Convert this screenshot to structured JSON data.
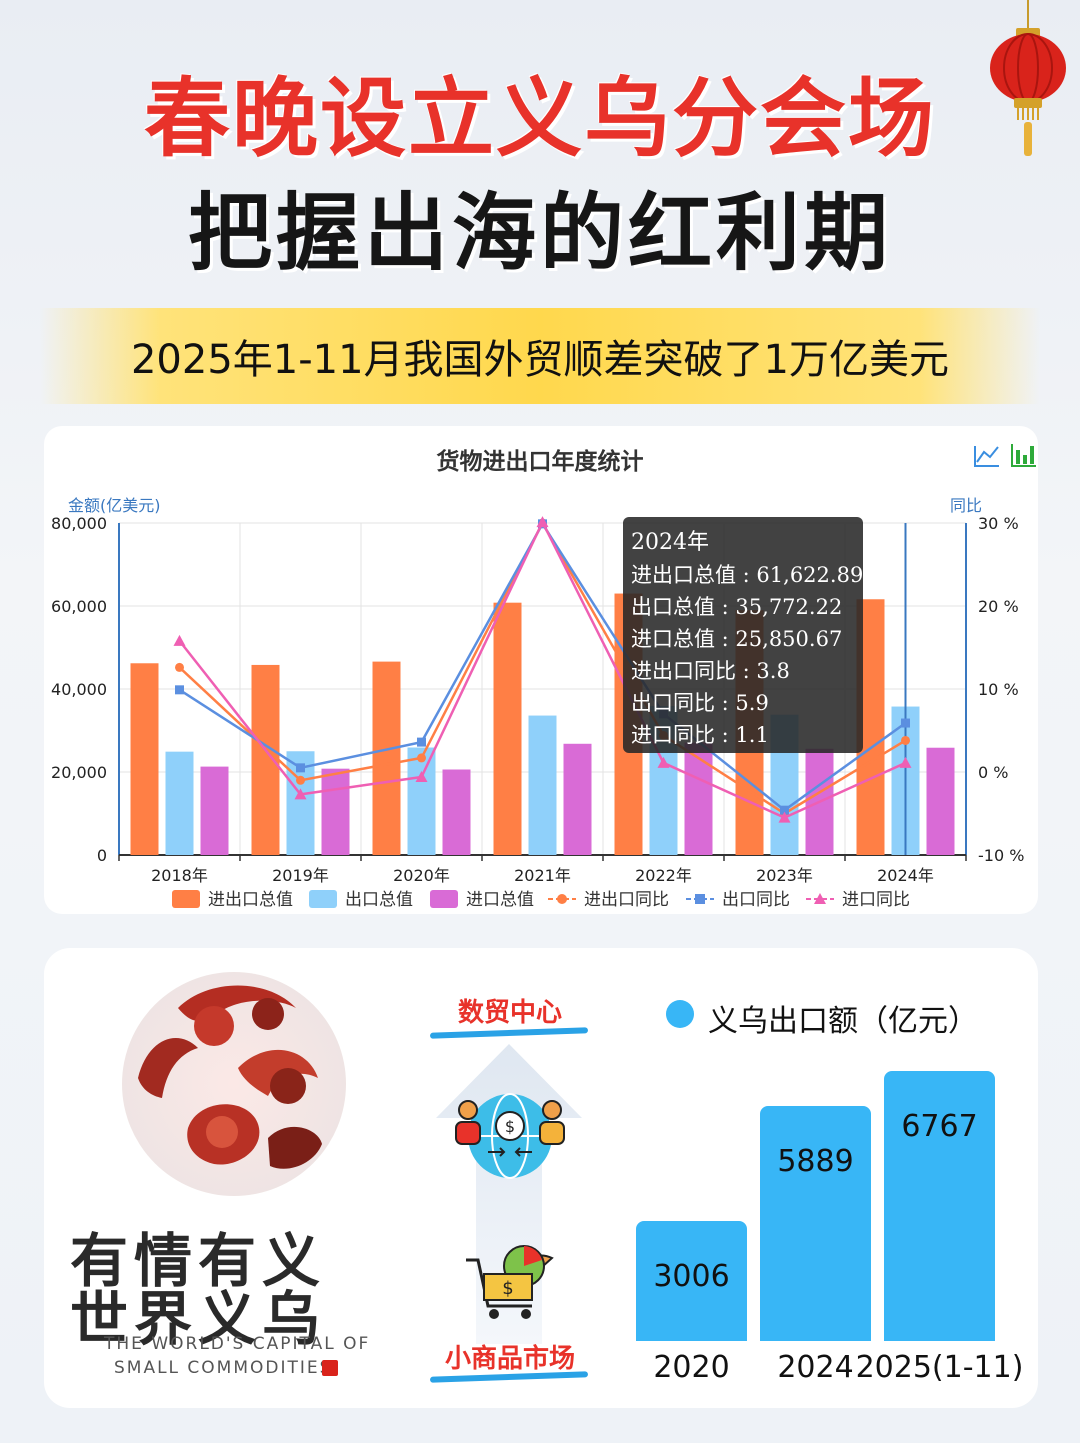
{
  "headline": {
    "line1": "春晚设立义乌分会场",
    "line2": "把握出海的红利期",
    "banner": "2025年1-11月我国外贸顺差突破了1万亿美元"
  },
  "colors": {
    "red": "#e8322a",
    "total": "#ff7f45",
    "export": "#8fd0fa",
    "import": "#d96bd6",
    "axisblue": "#3a78c0",
    "yiwu": "#38b6f6"
  },
  "chart_data": [
    {
      "type": "bar",
      "title": "货物进出口年度统计",
      "ylabel": "金额(亿美元)",
      "y2label": "同比",
      "categories": [
        "2018年",
        "2019年",
        "2020年",
        "2021年",
        "2022年",
        "2023年",
        "2024年"
      ],
      "ylim": [
        0,
        80000
      ],
      "y2lim": [
        -10,
        30
      ],
      "yticks": [
        "80,000",
        "60,000",
        "40,000",
        "20,000",
        "0"
      ],
      "y2ticks": [
        "30 %",
        "20 %",
        "10 %",
        "0 %",
        "-10 %"
      ],
      "series": [
        {
          "name": "进出口总值",
          "kind": "bar",
          "axis": "left",
          "values": [
            46200,
            45800,
            46600,
            60800,
            63000,
            59000,
            61622.89
          ]
        },
        {
          "name": "出口总值",
          "kind": "bar",
          "axis": "left",
          "values": [
            24900,
            25000,
            25900,
            33600,
            35900,
            33800,
            35772.22
          ]
        },
        {
          "name": "进口总值",
          "kind": "bar",
          "axis": "left",
          "values": [
            21300,
            20800,
            20600,
            26800,
            27100,
            25600,
            25850.67
          ]
        },
        {
          "name": "进出口同比",
          "kind": "line",
          "axis": "right",
          "values": [
            12.6,
            -1.0,
            1.7,
            30.0,
            4.4,
            -5.0,
            3.8
          ]
        },
        {
          "name": "出口同比",
          "kind": "line",
          "axis": "right",
          "values": [
            9.9,
            0.5,
            3.6,
            29.9,
            7.0,
            -4.6,
            5.9
          ]
        },
        {
          "name": "进口同比",
          "kind": "line",
          "axis": "right",
          "values": [
            15.8,
            -2.7,
            -0.6,
            30.1,
            1.1,
            -5.5,
            1.1
          ]
        }
      ],
      "legend_position": "bottom",
      "tooltip": {
        "title": "2024年",
        "lines": [
          "进出口总值 : 61,622.89",
          "出口总值 : 35,772.22",
          "进口总值 : 25,850.67",
          "进出口同比 : 3.8",
          "出口同比 : 5.9",
          "进口同比 : 1.1"
        ]
      }
    },
    {
      "type": "bar",
      "series_name": "义乌出口额（亿元）",
      "categories": [
        "2020",
        "2024",
        "2025(1-11)"
      ],
      "values": [
        3006,
        5889,
        6767
      ]
    }
  ],
  "flow": {
    "top_label": "数贸中心",
    "bottom_label": "小商品市场"
  },
  "seal": {
    "line1": "有情有义",
    "line2": "世界义乌",
    "en1": "THE WORLD'S CAPITAL OF",
    "en2": "SMALL COMMODITIES"
  }
}
